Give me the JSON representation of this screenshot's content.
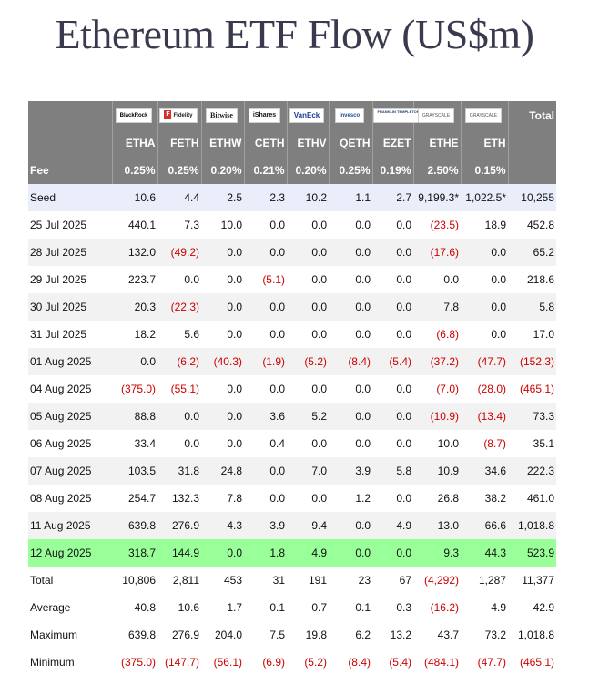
{
  "title": "Ethereum ETF Flow (US$m)",
  "colors": {
    "header_bg": "#7f7f7f",
    "negative": "#cc0000",
    "highlight_row": "#99ff99",
    "seed_row": "#e9eefa",
    "stripe": "#f2f2f2"
  },
  "chart_data": {
    "type": "table",
    "title": "Ethereum ETF Flow (US$m)",
    "issuers": [
      "BlackRock",
      "Fidelity",
      "Bitwise",
      "iShares",
      "VanEck",
      "Invesco",
      "Franklin Templeton",
      "Grayscale",
      "Grayscale"
    ],
    "total_header": "Total",
    "tickers": [
      "ETHA",
      "FETH",
      "ETHW",
      "CETH",
      "ETHV",
      "QETH",
      "EZET",
      "ETHE",
      "ETH"
    ],
    "fee_label": "Fee",
    "fees": [
      "0.25%",
      "0.25%",
      "0.20%",
      "0.21%",
      "0.20%",
      "0.25%",
      "0.19%",
      "2.50%",
      "0.15%"
    ],
    "rows": [
      {
        "label": "Seed",
        "cells": [
          "10.6",
          "4.4",
          "2.5",
          "2.3",
          "10.2",
          "1.1",
          "2.7",
          "9,199.3*",
          "1,022.5*",
          "10,255"
        ]
      },
      {
        "label": "25 Jul 2025",
        "cells": [
          "440.1",
          "7.3",
          "10.0",
          "0.0",
          "0.0",
          "0.0",
          "0.0",
          "(23.5)",
          "18.9",
          "452.8"
        ]
      },
      {
        "label": "28 Jul 2025",
        "cells": [
          "132.0",
          "(49.2)",
          "0.0",
          "0.0",
          "0.0",
          "0.0",
          "0.0",
          "(17.6)",
          "0.0",
          "65.2"
        ]
      },
      {
        "label": "29 Jul 2025",
        "cells": [
          "223.7",
          "0.0",
          "0.0",
          "(5.1)",
          "0.0",
          "0.0",
          "0.0",
          "0.0",
          "0.0",
          "218.6"
        ]
      },
      {
        "label": "30 Jul 2025",
        "cells": [
          "20.3",
          "(22.3)",
          "0.0",
          "0.0",
          "0.0",
          "0.0",
          "0.0",
          "7.8",
          "0.0",
          "5.8"
        ]
      },
      {
        "label": "31 Jul 2025",
        "cells": [
          "18.2",
          "5.6",
          "0.0",
          "0.0",
          "0.0",
          "0.0",
          "0.0",
          "(6.8)",
          "0.0",
          "17.0"
        ]
      },
      {
        "label": "01 Aug 2025",
        "cells": [
          "0.0",
          "(6.2)",
          "(40.3)",
          "(1.9)",
          "(5.2)",
          "(8.4)",
          "(5.4)",
          "(37.2)",
          "(47.7)",
          "(152.3)"
        ]
      },
      {
        "label": "04 Aug 2025",
        "cells": [
          "(375.0)",
          "(55.1)",
          "0.0",
          "0.0",
          "0.0",
          "0.0",
          "0.0",
          "(7.0)",
          "(28.0)",
          "(465.1)"
        ]
      },
      {
        "label": "05 Aug 2025",
        "cells": [
          "88.8",
          "0.0",
          "0.0",
          "3.6",
          "5.2",
          "0.0",
          "0.0",
          "(10.9)",
          "(13.4)",
          "73.3"
        ]
      },
      {
        "label": "06 Aug 2025",
        "cells": [
          "33.4",
          "0.0",
          "0.0",
          "0.4",
          "0.0",
          "0.0",
          "0.0",
          "10.0",
          "(8.7)",
          "35.1"
        ]
      },
      {
        "label": "07 Aug 2025",
        "cells": [
          "103.5",
          "31.8",
          "24.8",
          "0.0",
          "7.0",
          "3.9",
          "5.8",
          "10.9",
          "34.6",
          "222.3"
        ]
      },
      {
        "label": "08 Aug 2025",
        "cells": [
          "254.7",
          "132.3",
          "7.8",
          "0.0",
          "0.0",
          "1.2",
          "0.0",
          "26.8",
          "38.2",
          "461.0"
        ]
      },
      {
        "label": "11 Aug 2025",
        "cells": [
          "639.8",
          "276.9",
          "4.3",
          "3.9",
          "9.4",
          "0.0",
          "4.9",
          "13.0",
          "66.6",
          "1,018.8"
        ]
      },
      {
        "label": "12 Aug 2025",
        "cells": [
          "318.7",
          "144.9",
          "0.0",
          "1.8",
          "4.9",
          "0.0",
          "0.0",
          "9.3",
          "44.3",
          "523.9"
        ],
        "highlight": true
      }
    ],
    "summary": [
      {
        "label": "Total",
        "cells": [
          "10,806",
          "2,811",
          "453",
          "31",
          "191",
          "23",
          "67",
          "(4,292)",
          "1,287",
          "11,377"
        ]
      },
      {
        "label": "Average",
        "cells": [
          "40.8",
          "10.6",
          "1.7",
          "0.1",
          "0.7",
          "0.1",
          "0.3",
          "(16.2)",
          "4.9",
          "42.9"
        ]
      },
      {
        "label": "Maximum",
        "cells": [
          "639.8",
          "276.9",
          "204.0",
          "7.5",
          "19.8",
          "6.2",
          "13.2",
          "43.7",
          "73.2",
          "1,018.8"
        ]
      },
      {
        "label": "Minimum",
        "cells": [
          "(375.0)",
          "(147.7)",
          "(56.1)",
          "(6.9)",
          "(5.2)",
          "(8.4)",
          "(5.4)",
          "(484.1)",
          "(47.7)",
          "(465.1)"
        ]
      }
    ]
  }
}
